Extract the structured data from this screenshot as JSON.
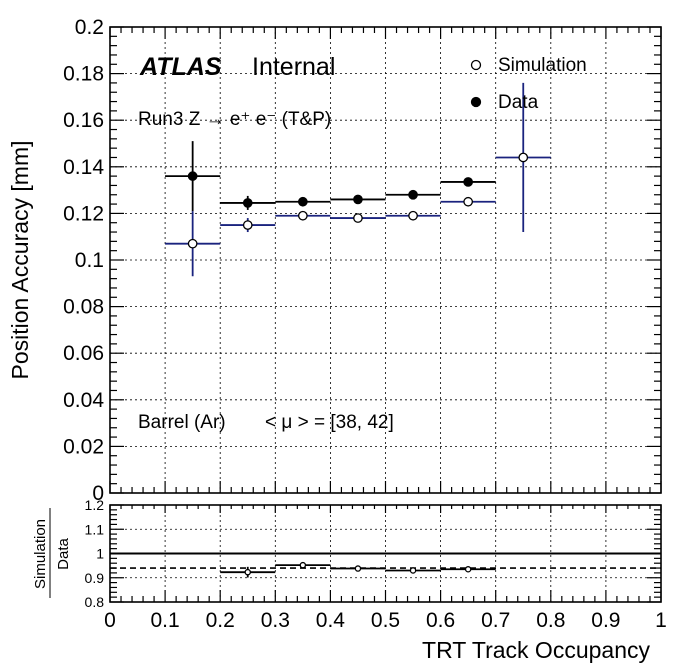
{
  "chart_data": [
    {
      "type": "scatter",
      "panel": "main",
      "experiment": "ATLAS",
      "status": "Internal",
      "process": "Run3 Z → e⁺ e⁻ (T&P)",
      "region": "Barrel (Ar)",
      "pileup": "< μ > = [38, 42]",
      "ylabel": "Position Accuracy [mm]",
      "xlim": [
        0,
        1
      ],
      "ylim": [
        0,
        0.2
      ],
      "x_ticks": [
        "0",
        "0.1",
        "0.2",
        "0.3",
        "0.4",
        "0.5",
        "0.6",
        "0.7",
        "0.8",
        "0.9",
        "1"
      ],
      "y_ticks": [
        "0",
        "0.02",
        "0.04",
        "0.06",
        "0.08",
        "0.1",
        "0.12",
        "0.14",
        "0.16",
        "0.18",
        "0.2"
      ],
      "grid": true,
      "legend_position": "top-right",
      "series": [
        {
          "name": "Simulation",
          "marker": "open-circle",
          "color": "#1a237e",
          "points": [
            {
              "x": 0.15,
              "xlow": 0.1,
              "xhigh": 0.2,
              "y": 0.107,
              "yerr": 0.014
            },
            {
              "x": 0.25,
              "xlow": 0.2,
              "xhigh": 0.3,
              "y": 0.115,
              "yerr": 0.003
            },
            {
              "x": 0.35,
              "xlow": 0.3,
              "xhigh": 0.4,
              "y": 0.119,
              "yerr": 0.001
            },
            {
              "x": 0.45,
              "xlow": 0.4,
              "xhigh": 0.5,
              "y": 0.118,
              "yerr": 0.001
            },
            {
              "x": 0.55,
              "xlow": 0.5,
              "xhigh": 0.6,
              "y": 0.119,
              "yerr": 0.001
            },
            {
              "x": 0.65,
              "xlow": 0.6,
              "xhigh": 0.7,
              "y": 0.125,
              "yerr": 0.001
            },
            {
              "x": 0.75,
              "xlow": 0.7,
              "xhigh": 0.8,
              "y": 0.144,
              "yerr": 0.032
            }
          ]
        },
        {
          "name": "Data",
          "marker": "filled-circle",
          "color": "#000000",
          "points": [
            {
              "x": 0.15,
              "xlow": 0.1,
              "xhigh": 0.2,
              "y": 0.136,
              "yerr": 0.015
            },
            {
              "x": 0.25,
              "xlow": 0.2,
              "xhigh": 0.3,
              "y": 0.1245,
              "yerr": 0.003
            },
            {
              "x": 0.35,
              "xlow": 0.3,
              "xhigh": 0.4,
              "y": 0.125,
              "yerr": 0.001
            },
            {
              "x": 0.45,
              "xlow": 0.4,
              "xhigh": 0.5,
              "y": 0.126,
              "yerr": 0.001
            },
            {
              "x": 0.55,
              "xlow": 0.5,
              "xhigh": 0.6,
              "y": 0.128,
              "yerr": 0.001
            },
            {
              "x": 0.65,
              "xlow": 0.6,
              "xhigh": 0.7,
              "y": 0.1335,
              "yerr": 0.001
            }
          ]
        }
      ]
    },
    {
      "type": "scatter",
      "panel": "ratio",
      "ylabel_numerator": "Simulation",
      "ylabel_denominator": "Data",
      "xlabel": "TRT Track Occupancy",
      "xlim": [
        0,
        1
      ],
      "ylim": [
        0.8,
        1.2
      ],
      "x_ticks": [
        "0",
        "0.1",
        "0.2",
        "0.3",
        "0.4",
        "0.5",
        "0.6",
        "0.7",
        "0.8",
        "0.9",
        "1"
      ],
      "y_ticks": [
        "0.8",
        "0.9",
        "1",
        "1.1",
        "1.2"
      ],
      "grid": true,
      "reference_line": 1.0,
      "dashed_line": 0.94,
      "points": [
        {
          "x": 0.25,
          "xlow": 0.2,
          "xhigh": 0.3,
          "y": 0.923,
          "yerr": 0.022
        },
        {
          "x": 0.35,
          "xlow": 0.3,
          "xhigh": 0.4,
          "y": 0.952,
          "yerr": 0.006
        },
        {
          "x": 0.45,
          "xlow": 0.4,
          "xhigh": 0.5,
          "y": 0.938,
          "yerr": 0.005
        },
        {
          "x": 0.55,
          "xlow": 0.5,
          "xhigh": 0.6,
          "y": 0.93,
          "yerr": 0.005
        },
        {
          "x": 0.65,
          "xlow": 0.6,
          "xhigh": 0.7,
          "y": 0.935,
          "yerr": 0.008
        }
      ]
    }
  ]
}
